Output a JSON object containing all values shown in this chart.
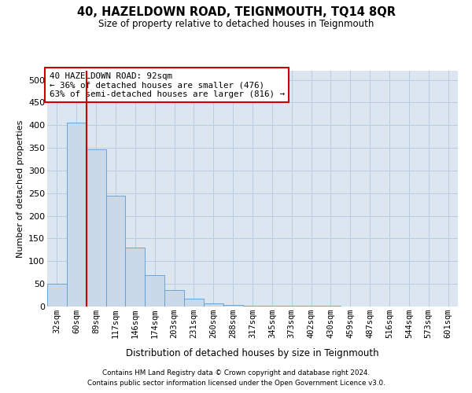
{
  "title": "40, HAZELDOWN ROAD, TEIGNMOUTH, TQ14 8QR",
  "subtitle": "Size of property relative to detached houses in Teignmouth",
  "xlabel": "Distribution of detached houses by size in Teignmouth",
  "ylabel": "Number of detached properties",
  "footer_line1": "Contains HM Land Registry data © Crown copyright and database right 2024.",
  "footer_line2": "Contains public sector information licensed under the Open Government Licence v3.0.",
  "categories": [
    "32sqm",
    "60sqm",
    "89sqm",
    "117sqm",
    "146sqm",
    "174sqm",
    "203sqm",
    "231sqm",
    "260sqm",
    "288sqm",
    "317sqm",
    "345sqm",
    "373sqm",
    "402sqm",
    "430sqm",
    "459sqm",
    "487sqm",
    "516sqm",
    "544sqm",
    "573sqm",
    "601sqm"
  ],
  "bar_heights": [
    50,
    405,
    347,
    245,
    130,
    70,
    37,
    17,
    7,
    3,
    1,
    1,
    1,
    1,
    1,
    0,
    0,
    0,
    0,
    0,
    0
  ],
  "bar_color": "#c9d9ea",
  "bar_edge_color": "#5b9bd5",
  "grid_color": "#b8cce4",
  "background_color": "#dce6f1",
  "property_label": "40 HAZELDOWN ROAD: 92sqm",
  "annotation_line1": "← 36% of detached houses are smaller (476)",
  "annotation_line2": "63% of semi-detached houses are larger (816) →",
  "red_line_color": "#cc0000",
  "annotation_box_bg": "#ffffff",
  "annotation_box_edge": "#cc0000",
  "ylim": [
    0,
    520
  ],
  "yticks": [
    0,
    50,
    100,
    150,
    200,
    250,
    300,
    350,
    400,
    450,
    500
  ],
  "red_line_x": 1.5
}
